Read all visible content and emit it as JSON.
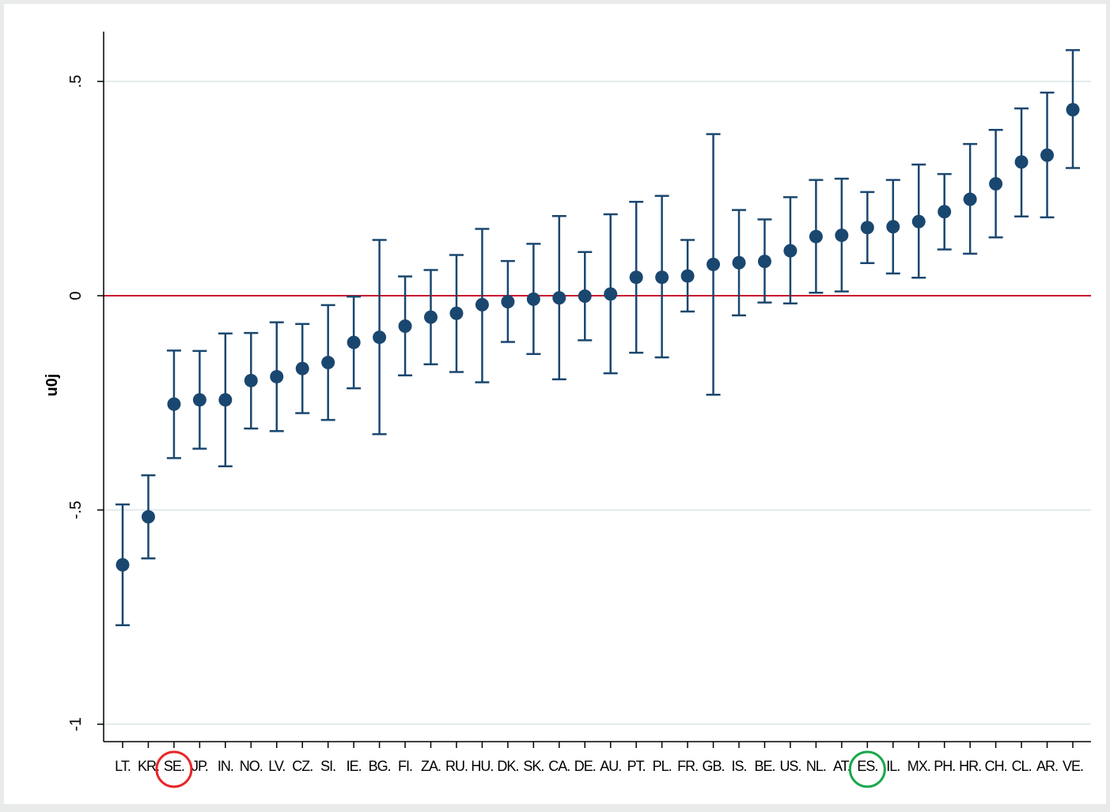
{
  "chart_data": {
    "type": "scatter",
    "subtype": "caterpillar-plot-with-error-bars",
    "title": "",
    "xlabel": "",
    "ylabel": "u0j",
    "ylim": [
      -1.05,
      0.6
    ],
    "yticks": [
      {
        "value": 0.5,
        "label": ".5"
      },
      {
        "value": 0,
        "label": "0"
      },
      {
        "value": -0.5,
        "label": "-.5"
      },
      {
        "value": -1,
        "label": "-1"
      }
    ],
    "grid": true,
    "legend": "none",
    "reference_line": {
      "y": 0,
      "color": "#c8102e"
    },
    "categories": [
      "LT",
      "KR",
      "SE",
      "JP",
      "IN",
      "NO",
      "LV",
      "CZ",
      "SI",
      "IE",
      "BG",
      "FI",
      "ZA",
      "RU",
      "HU",
      "DK",
      "SK",
      "CA",
      "DE",
      "AU",
      "PT",
      "PL",
      "FR",
      "GB",
      "IS",
      "BE",
      "US",
      "NL",
      "AT",
      "ES",
      "IL",
      "MX",
      "PH",
      "HR",
      "CH",
      "CL",
      "AR",
      "VE"
    ],
    "tick_labels": [
      "LT.",
      "KR.",
      "SE.",
      "JP.",
      "IN.",
      "NO.",
      "LV.",
      "CZ.",
      "SI.",
      "IE.",
      "BG.",
      "FI.",
      "ZA.",
      "RU.",
      "HU.",
      "DK.",
      "SK.",
      "CA.",
      "DE.",
      "AU.",
      "PT.",
      "PL.",
      "FR.",
      "GB.",
      "IS.",
      "BE.",
      "US.",
      "NL.",
      "AT.",
      "ES.",
      "IL.",
      "MX.",
      "PH.",
      "HR.",
      "CH.",
      "CL.",
      "AR.",
      "VE."
    ],
    "series": [
      {
        "values": [
          -0.628,
          -0.516,
          -0.253,
          -0.243,
          -0.243,
          -0.198,
          -0.189,
          -0.17,
          -0.156,
          -0.109,
          -0.097,
          -0.071,
          -0.05,
          -0.041,
          -0.021,
          -0.014,
          -0.008,
          -0.005,
          -0.001,
          0.004,
          0.043,
          0.043,
          0.046,
          0.073,
          0.077,
          0.08,
          0.105,
          0.138,
          0.141,
          0.159,
          0.161,
          0.173,
          0.196,
          0.225,
          0.261,
          0.312,
          0.328,
          0.434
        ],
        "lower": [
          -0.769,
          -0.613,
          -0.379,
          -0.357,
          -0.398,
          -0.31,
          -0.316,
          -0.274,
          -0.29,
          -0.216,
          -0.323,
          -0.186,
          -0.16,
          -0.178,
          -0.202,
          -0.108,
          -0.136,
          -0.195,
          -0.104,
          -0.181,
          -0.133,
          -0.144,
          -0.037,
          -0.231,
          -0.046,
          -0.016,
          -0.018,
          0.007,
          0.01,
          0.076,
          0.052,
          0.042,
          0.108,
          0.098,
          0.136,
          0.185,
          0.183,
          0.298
        ],
        "upper": [
          -0.487,
          -0.419,
          -0.128,
          -0.129,
          -0.088,
          -0.087,
          -0.062,
          -0.066,
          -0.022,
          -0.002,
          0.13,
          0.045,
          0.06,
          0.095,
          0.156,
          0.081,
          0.121,
          0.186,
          0.102,
          0.19,
          0.219,
          0.233,
          0.13,
          0.377,
          0.2,
          0.178,
          0.23,
          0.27,
          0.273,
          0.242,
          0.27,
          0.306,
          0.284,
          0.354,
          0.387,
          0.437,
          0.474,
          0.573
        ]
      }
    ],
    "colors": {
      "marker": "#1a476f",
      "reference_line": "#c8102e",
      "gridline": "#e3ecec",
      "plot_background": "#ffffff",
      "outer_background": "#e9eaea"
    },
    "annotations": [
      {
        "type": "circle",
        "target": "SE",
        "color": "#e8262a"
      },
      {
        "type": "circle",
        "target": "ES",
        "color": "#1aa84c"
      }
    ]
  }
}
